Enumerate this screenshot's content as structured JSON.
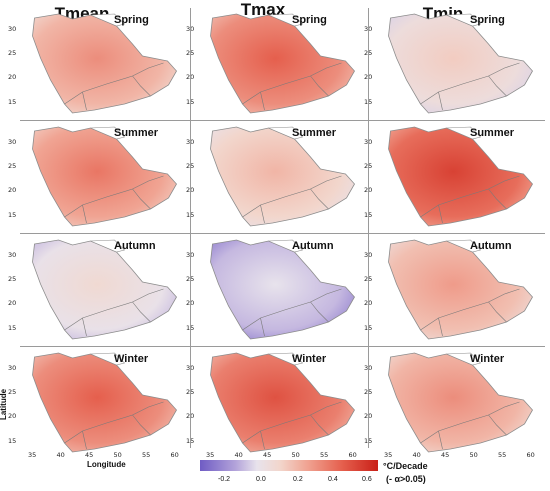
{
  "columns": [
    "Tmean",
    "Tmax",
    "Tmin"
  ],
  "seasons": [
    "Spring",
    "Summer",
    "Autumn",
    "Winter"
  ],
  "lat_ticks": [
    "30",
    "25",
    "20",
    "15"
  ],
  "lon_ticks": [
    "35",
    "40",
    "45",
    "50",
    "55",
    "60"
  ],
  "axis": {
    "ylabel": "Latitude",
    "xlabel": "Longitude"
  },
  "legend": {
    "unit_line1": "°C/Decade",
    "unit_line2": "(- α>0.05)",
    "ticks": [
      "-0.2",
      "0.0",
      "0.2",
      "0.4",
      "0.6"
    ],
    "range": [
      -0.3,
      0.6
    ],
    "colors": [
      "#6f5cc4",
      "#b3a3da",
      "#e8e3ec",
      "#f2d6cc",
      "#f0a493",
      "#e55f4d",
      "#c92018"
    ]
  },
  "trend_levels": {
    "Tmean": {
      "Spring": 0.25,
      "Summer": 0.3,
      "Autumn": 0.02,
      "Winter": 0.35
    },
    "Tmax": {
      "Spring": 0.35,
      "Summer": 0.15,
      "Autumn": -0.1,
      "Winter": 0.38
    },
    "Tmin": {
      "Spring": 0.08,
      "Summer": 0.42,
      "Autumn": 0.22,
      "Winter": 0.25
    }
  }
}
